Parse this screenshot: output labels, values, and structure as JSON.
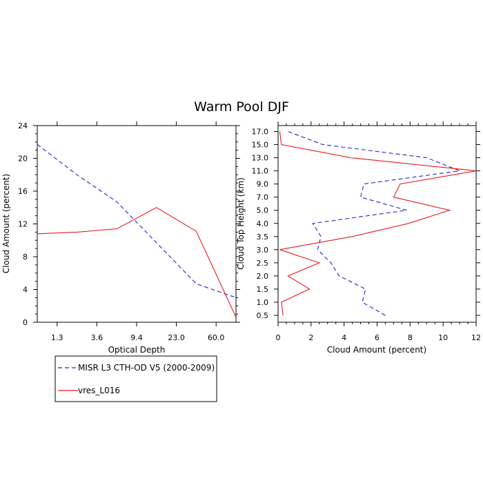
{
  "title": "Warm Pool DJF",
  "colors": {
    "obs": "#1f1fd6",
    "model": "#e8191e",
    "axis": "#000000"
  },
  "chart_data": [
    {
      "type": "line",
      "xlabel": "Optical Depth",
      "ylabel": "Cloud Amount (percent)",
      "ylim": [
        0,
        24
      ],
      "y_ticks": [
        0,
        4,
        8,
        12,
        16,
        20,
        24
      ],
      "x_tick_labels": [
        "1.3",
        "3.6",
        "9.4",
        "23.0",
        "60.0"
      ],
      "x_positions": [
        0,
        1,
        2,
        3,
        4,
        5
      ],
      "series": [
        {
          "name": "MISR L3 CTH-OD V5 (2000-2009)",
          "style": "dashed",
          "values": [
            21.7,
            18.0,
            14.7,
            9.7,
            4.7,
            3.0
          ]
        },
        {
          "name": "vres_L016",
          "style": "solid",
          "values": [
            10.8,
            11.0,
            11.4,
            14.0,
            11.1,
            0.6
          ]
        }
      ]
    },
    {
      "type": "line",
      "orientation": "horizontal",
      "xlabel": "Cloud Amount (percent)",
      "ylabel": "Cloud Top Height (km)",
      "xlim": [
        0,
        12
      ],
      "x_ticks": [
        0,
        2,
        4,
        6,
        8,
        10,
        12
      ],
      "y_tick_labels": [
        "0.5",
        "1.0",
        "1.5",
        "2.0",
        "2.5",
        "3.0",
        "3.5",
        "4.0",
        "5.0",
        "7.0",
        "9.0",
        "11.0",
        "13.0",
        "15.0",
        "17.0"
      ],
      "series": [
        {
          "name": "MISR L3 CTH-OD V5 (2000-2009)",
          "style": "dashed",
          "values": [
            6.5,
            5.1,
            5.3,
            3.7,
            3.2,
            2.4,
            2.6,
            2.1,
            7.8,
            5.0,
            5.2,
            11.0,
            9.0,
            2.7,
            0.6
          ]
        },
        {
          "name": "vres_L016",
          "style": "solid",
          "values": [
            0.3,
            0.2,
            1.9,
            0.6,
            2.5,
            0.1,
            4.5,
            7.9,
            10.4,
            7.0,
            7.4,
            12.0,
            4.4,
            0.2,
            0.1
          ]
        }
      ]
    }
  ],
  "legend": [
    {
      "label": "MISR L3 CTH-OD V5 (2000-2009)"
    },
    {
      "label": "vres_L016"
    }
  ]
}
